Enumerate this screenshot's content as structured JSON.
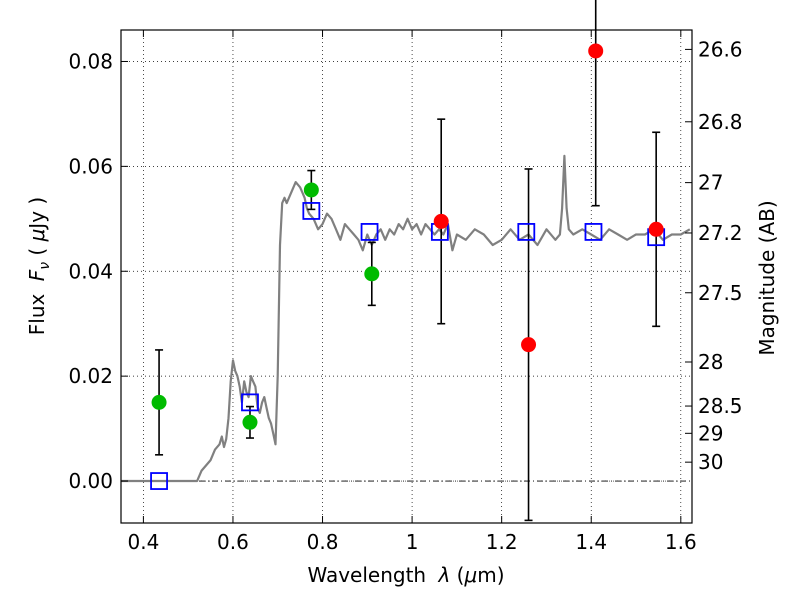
{
  "chart_data": {
    "type": "scatter",
    "title": "",
    "xlabel_text": "Wavelength ",
    "xlabel_symbol": "λ",
    "xlabel_unit_open": " (",
    "xlabel_unit_mu": "μ",
    "xlabel_unit_rest": "m)",
    "ylabel_text": "Flux ",
    "ylabel_F": "F",
    "ylabel_sub": "ν",
    "ylabel_unit_open": " ( ",
    "ylabel_unit_mu": "μ",
    "ylabel_unit_rest": "Jy )",
    "y2label": "Magnitude (AB)",
    "xlim": [
      0.35,
      1.625
    ],
    "ylim": [
      -0.008,
      0.086
    ],
    "grid": true,
    "x_ticks": [
      0.4,
      0.6,
      0.8,
      1.0,
      1.2,
      1.4,
      1.6
    ],
    "x_tick_labels": [
      "0.4",
      "0.6",
      "0.8",
      "1",
      "1.2",
      "1.4",
      "1.6"
    ],
    "y_ticks": [
      0.0,
      0.02,
      0.04,
      0.06,
      0.08
    ],
    "y_tick_labels": [
      "0.00",
      "0.02",
      "0.04",
      "0.06",
      "0.08"
    ],
    "y2_ticks": [
      {
        "label": "26.6",
        "flux": 0.0823
      },
      {
        "label": "26.8",
        "flux": 0.0685
      },
      {
        "label": "27",
        "flux": 0.0569
      },
      {
        "label": "27.2",
        "flux": 0.0473
      },
      {
        "label": "27.5",
        "flux": 0.0359
      },
      {
        "label": "28",
        "flux": 0.0227
      },
      {
        "label": "28.5",
        "flux": 0.0143
      },
      {
        "label": "29",
        "flux": 0.0091
      },
      {
        "label": "30",
        "flux": 0.0036
      }
    ],
    "series": [
      {
        "kind": "line",
        "color": "#808080",
        "x": [
          0.35,
          0.52,
          0.53,
          0.55,
          0.56,
          0.57,
          0.575,
          0.58,
          0.585,
          0.59,
          0.595,
          0.6,
          0.605,
          0.61,
          0.615,
          0.62,
          0.625,
          0.63,
          0.635,
          0.64,
          0.645,
          0.65,
          0.655,
          0.66,
          0.665,
          0.67,
          0.675,
          0.68,
          0.685,
          0.69,
          0.695,
          0.7,
          0.705,
          0.71,
          0.715,
          0.72,
          0.73,
          0.74,
          0.75,
          0.755,
          0.76,
          0.765,
          0.77,
          0.78,
          0.79,
          0.8,
          0.81,
          0.82,
          0.83,
          0.84,
          0.85,
          0.86,
          0.87,
          0.88,
          0.89,
          0.9,
          0.91,
          0.92,
          0.93,
          0.94,
          0.95,
          0.96,
          0.97,
          0.98,
          0.99,
          1.0,
          1.01,
          1.02,
          1.03,
          1.04,
          1.05,
          1.06,
          1.07,
          1.08,
          1.09,
          1.1,
          1.12,
          1.14,
          1.16,
          1.18,
          1.2,
          1.22,
          1.24,
          1.26,
          1.28,
          1.3,
          1.32,
          1.33,
          1.335,
          1.34,
          1.345,
          1.35,
          1.36,
          1.38,
          1.4,
          1.42,
          1.44,
          1.46,
          1.48,
          1.5,
          1.52,
          1.54,
          1.56,
          1.58,
          1.6,
          1.62
        ],
        "y": [
          0.0,
          0.0,
          0.002,
          0.004,
          0.006,
          0.007,
          0.0085,
          0.0065,
          0.008,
          0.012,
          0.019,
          0.023,
          0.021,
          0.02,
          0.018,
          0.015,
          0.019,
          0.017,
          0.016,
          0.02,
          0.019,
          0.018,
          0.014,
          0.013,
          0.015,
          0.016,
          0.014,
          0.012,
          0.011,
          0.009,
          0.007,
          0.02,
          0.045,
          0.053,
          0.054,
          0.053,
          0.055,
          0.057,
          0.056,
          0.055,
          0.054,
          0.052,
          0.051,
          0.05,
          0.048,
          0.049,
          0.051,
          0.05,
          0.048,
          0.046,
          0.049,
          0.048,
          0.047,
          0.046,
          0.044,
          0.047,
          0.045,
          0.047,
          0.048,
          0.046,
          0.048,
          0.047,
          0.049,
          0.048,
          0.05,
          0.048,
          0.049,
          0.047,
          0.049,
          0.048,
          0.047,
          0.048,
          0.047,
          0.049,
          0.044,
          0.047,
          0.046,
          0.048,
          0.047,
          0.045,
          0.046,
          0.048,
          0.046,
          0.047,
          0.045,
          0.048,
          0.046,
          0.047,
          0.052,
          0.062,
          0.052,
          0.048,
          0.047,
          0.048,
          0.047,
          0.046,
          0.048,
          0.047,
          0.046,
          0.047,
          0.047,
          0.048,
          0.046,
          0.047,
          0.047,
          0.048
        ]
      },
      {
        "kind": "squares",
        "color": "#0000ff",
        "x": [
          0.435,
          0.638,
          0.775,
          0.905,
          1.062,
          1.255,
          1.405,
          1.545
        ],
        "y": [
          0.0,
          0.015,
          0.0515,
          0.0475,
          0.0475,
          0.0475,
          0.0475,
          0.0465
        ]
      },
      {
        "kind": "points",
        "color": "#00bb00",
        "x": [
          0.435,
          0.638,
          0.775,
          0.91
        ],
        "y": [
          0.015,
          0.0112,
          0.0555,
          0.0395
        ],
        "yerr": [
          0.01,
          0.003,
          0.0037,
          0.006
        ]
      },
      {
        "kind": "points",
        "color": "#ff0000",
        "x": [
          1.065,
          1.26,
          1.41,
          1.545
        ],
        "y": [
          0.0495,
          0.026,
          0.082,
          0.048
        ],
        "yerr": [
          0.0195,
          0.0335,
          0.0295,
          0.0185
        ]
      }
    ]
  }
}
